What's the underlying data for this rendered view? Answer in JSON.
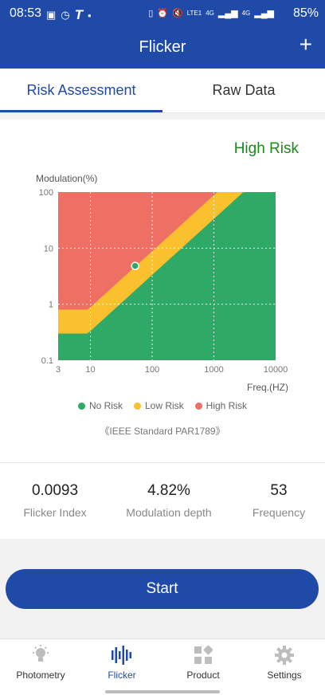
{
  "status_bar": {
    "time": "08:53",
    "network_4g_1": "4G",
    "network_4g_2": "4G",
    "lte": "LTE1",
    "battery": "85%"
  },
  "app_bar": {
    "title": "Flicker",
    "add_icon": "plus-icon"
  },
  "tabs": [
    {
      "label": "Risk Assessment",
      "active": true
    },
    {
      "label": "Raw Data",
      "active": false
    }
  ],
  "risk_result": {
    "label": "High Risk",
    "color": "#1a8a1a"
  },
  "chart_data": {
    "type": "scatter",
    "ylabel": "Modulation(%)",
    "xlabel": "Freq.(HZ)",
    "x_scale": "log",
    "y_scale": "log",
    "xlim": [
      3,
      10000
    ],
    "ylim": [
      0.1,
      100
    ],
    "x_ticks": [
      "3",
      "10",
      "100",
      "1000",
      "10000"
    ],
    "y_ticks": [
      "100",
      "10",
      "1",
      "0.1"
    ],
    "grid": true,
    "regions": [
      {
        "name": "No Risk",
        "color": "#2eaa66"
      },
      {
        "name": "Low Risk",
        "color": "#fbc02d"
      },
      {
        "name": "High Risk",
        "color": "#ee7065"
      }
    ],
    "point": {
      "x": 53,
      "y": 4.82,
      "color": "#2eaa66"
    }
  },
  "legend": [
    {
      "label": "No Risk",
      "color": "#2eaa66"
    },
    {
      "label": "Low Risk",
      "color": "#fbc02d"
    },
    {
      "label": "High Risk",
      "color": "#ee7065"
    }
  ],
  "standard_note": "《IEEE Standard PAR1789》",
  "stats": [
    {
      "value": "0.0093",
      "label": "Flicker Index"
    },
    {
      "value": "4.82%",
      "label": "Modulation depth"
    },
    {
      "value": "53",
      "label": "Frequency"
    }
  ],
  "start_button": {
    "label": "Start"
  },
  "bottom_nav": [
    {
      "label": "Photometry",
      "icon": "lightbulb-icon",
      "active": false
    },
    {
      "label": "Flicker",
      "icon": "waveform-icon",
      "active": true
    },
    {
      "label": "Product",
      "icon": "grid-icon",
      "active": false
    },
    {
      "label": "Settings",
      "icon": "gear-icon",
      "active": false
    }
  ]
}
